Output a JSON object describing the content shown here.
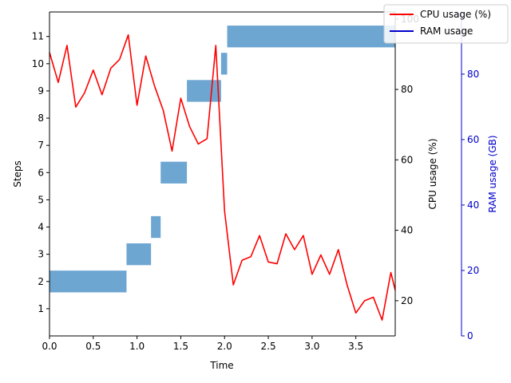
{
  "chart_data": {
    "type": "bar",
    "title": "",
    "xlabel": "Time",
    "xlim": [
      0,
      3.95
    ],
    "x_ticks": [
      0.0,
      0.5,
      1.0,
      1.5,
      2.0,
      2.5,
      3.0,
      3.5
    ],
    "x_tick_labels": [
      "0.0",
      "0.5",
      "1.0",
      "1.5",
      "2.0",
      "2.5",
      "3.0",
      "3.5"
    ],
    "steps_axis": {
      "label": "Steps",
      "ylim": [
        0,
        11.9
      ],
      "ticks": [
        1,
        2,
        3,
        4,
        5,
        6,
        7,
        8,
        9,
        10,
        11
      ],
      "tick_labels": [
        "1",
        "2",
        "3",
        "4",
        "5",
        "6",
        "7",
        "8",
        "9",
        "10",
        "11"
      ]
    },
    "step_bars": {
      "color": "#6ea6d2",
      "items": [
        {
          "step": 2,
          "start": 0.0,
          "end": 0.88
        },
        {
          "step": 3,
          "start": 0.88,
          "end": 1.16
        },
        {
          "step": 4,
          "start": 1.16,
          "end": 1.27
        },
        {
          "step": 6,
          "start": 1.27,
          "end": 1.57
        },
        {
          "step": 9,
          "start": 1.57,
          "end": 1.96
        },
        {
          "step": 10,
          "start": 1.96,
          "end": 2.03
        },
        {
          "step": 11,
          "start": 2.03,
          "end": 3.95
        }
      ]
    },
    "cpu_axis": {
      "label": "CPU usage (%)",
      "ylim": [
        10,
        102
      ],
      "ticks": [
        20,
        40,
        60,
        80,
        100
      ],
      "tick_labels": [
        "20",
        "40",
        "60",
        "80",
        "100"
      ]
    },
    "ram_axis": {
      "label": "RAM usage (GB)",
      "ylim": [
        0,
        99
      ],
      "ticks": [
        0,
        20,
        40,
        60,
        80
      ],
      "tick_labels": [
        "0",
        "20",
        "40",
        "60",
        "80"
      ],
      "color": "#0000cc"
    },
    "series": [
      {
        "name": "CPU usage (%)",
        "color": "#ff0000",
        "axis": "cpu",
        "x": [
          0.0,
          0.1,
          0.2,
          0.3,
          0.4,
          0.5,
          0.6,
          0.7,
          0.8,
          0.9,
          1.0,
          1.1,
          1.2,
          1.3,
          1.4,
          1.5,
          1.6,
          1.7,
          1.8,
          1.9,
          2.0,
          2.1,
          2.2,
          2.3,
          2.4,
          2.5,
          2.6,
          2.7,
          2.8,
          2.9,
          3.0,
          3.1,
          3.2,
          3.3,
          3.4,
          3.5,
          3.6,
          3.7,
          3.8,
          3.9,
          3.95
        ],
        "values": [
          90.5,
          82.0,
          92.5,
          75.0,
          79.0,
          85.5,
          78.5,
          86.0,
          88.5,
          95.5,
          75.5,
          89.5,
          81.0,
          74.0,
          62.5,
          77.5,
          69.5,
          64.5,
          66.0,
          92.5,
          45.5,
          24.5,
          31.5,
          32.5,
          38.5,
          31.0,
          30.5,
          39.0,
          34.5,
          38.5,
          27.5,
          33.0,
          27.5,
          34.5,
          24.5,
          16.5,
          20.0,
          21.0,
          14.5,
          28.0,
          23.0
        ]
      },
      {
        "name": "RAM usage",
        "color": "#0000cc",
        "axis": "ram",
        "x": [],
        "values": []
      }
    ],
    "legend": {
      "position": "top-right"
    }
  }
}
